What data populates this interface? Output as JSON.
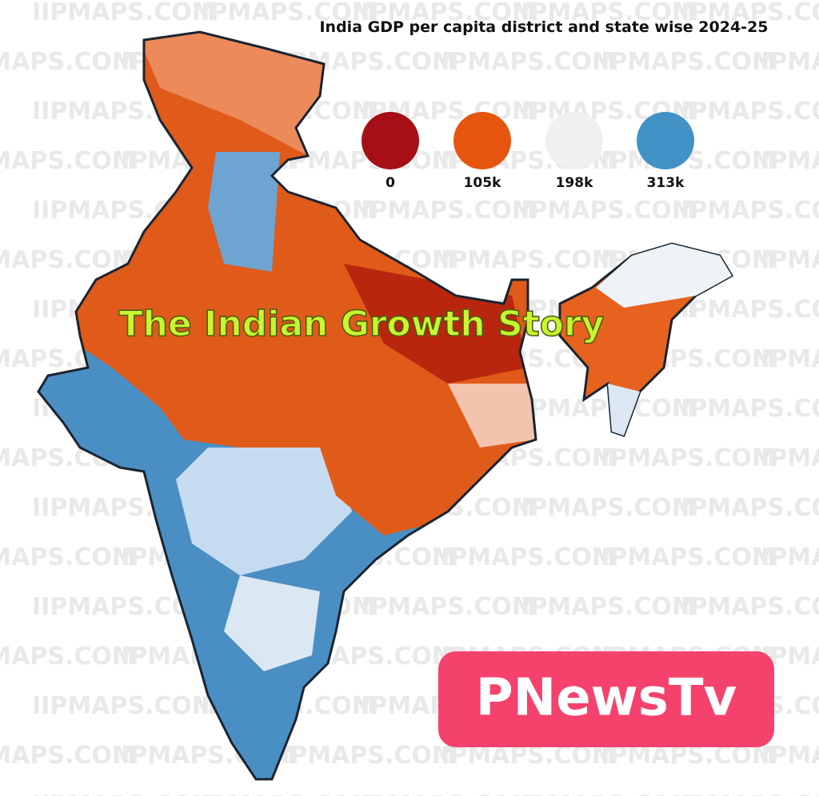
{
  "header": {
    "title": "India GDP per capita district and state wise 2024-25"
  },
  "legend": [
    {
      "label": "0",
      "color": "#a50f15"
    },
    {
      "label": "105k",
      "color": "#e6550d"
    },
    {
      "label": "198k",
      "color": "#f0f0f0"
    },
    {
      "label": "313k",
      "color": "#4292c6"
    }
  ],
  "overlay": "The Indian Growth Story",
  "badge": "PNewsTv",
  "watermark": "IIPMAPS.COM"
}
